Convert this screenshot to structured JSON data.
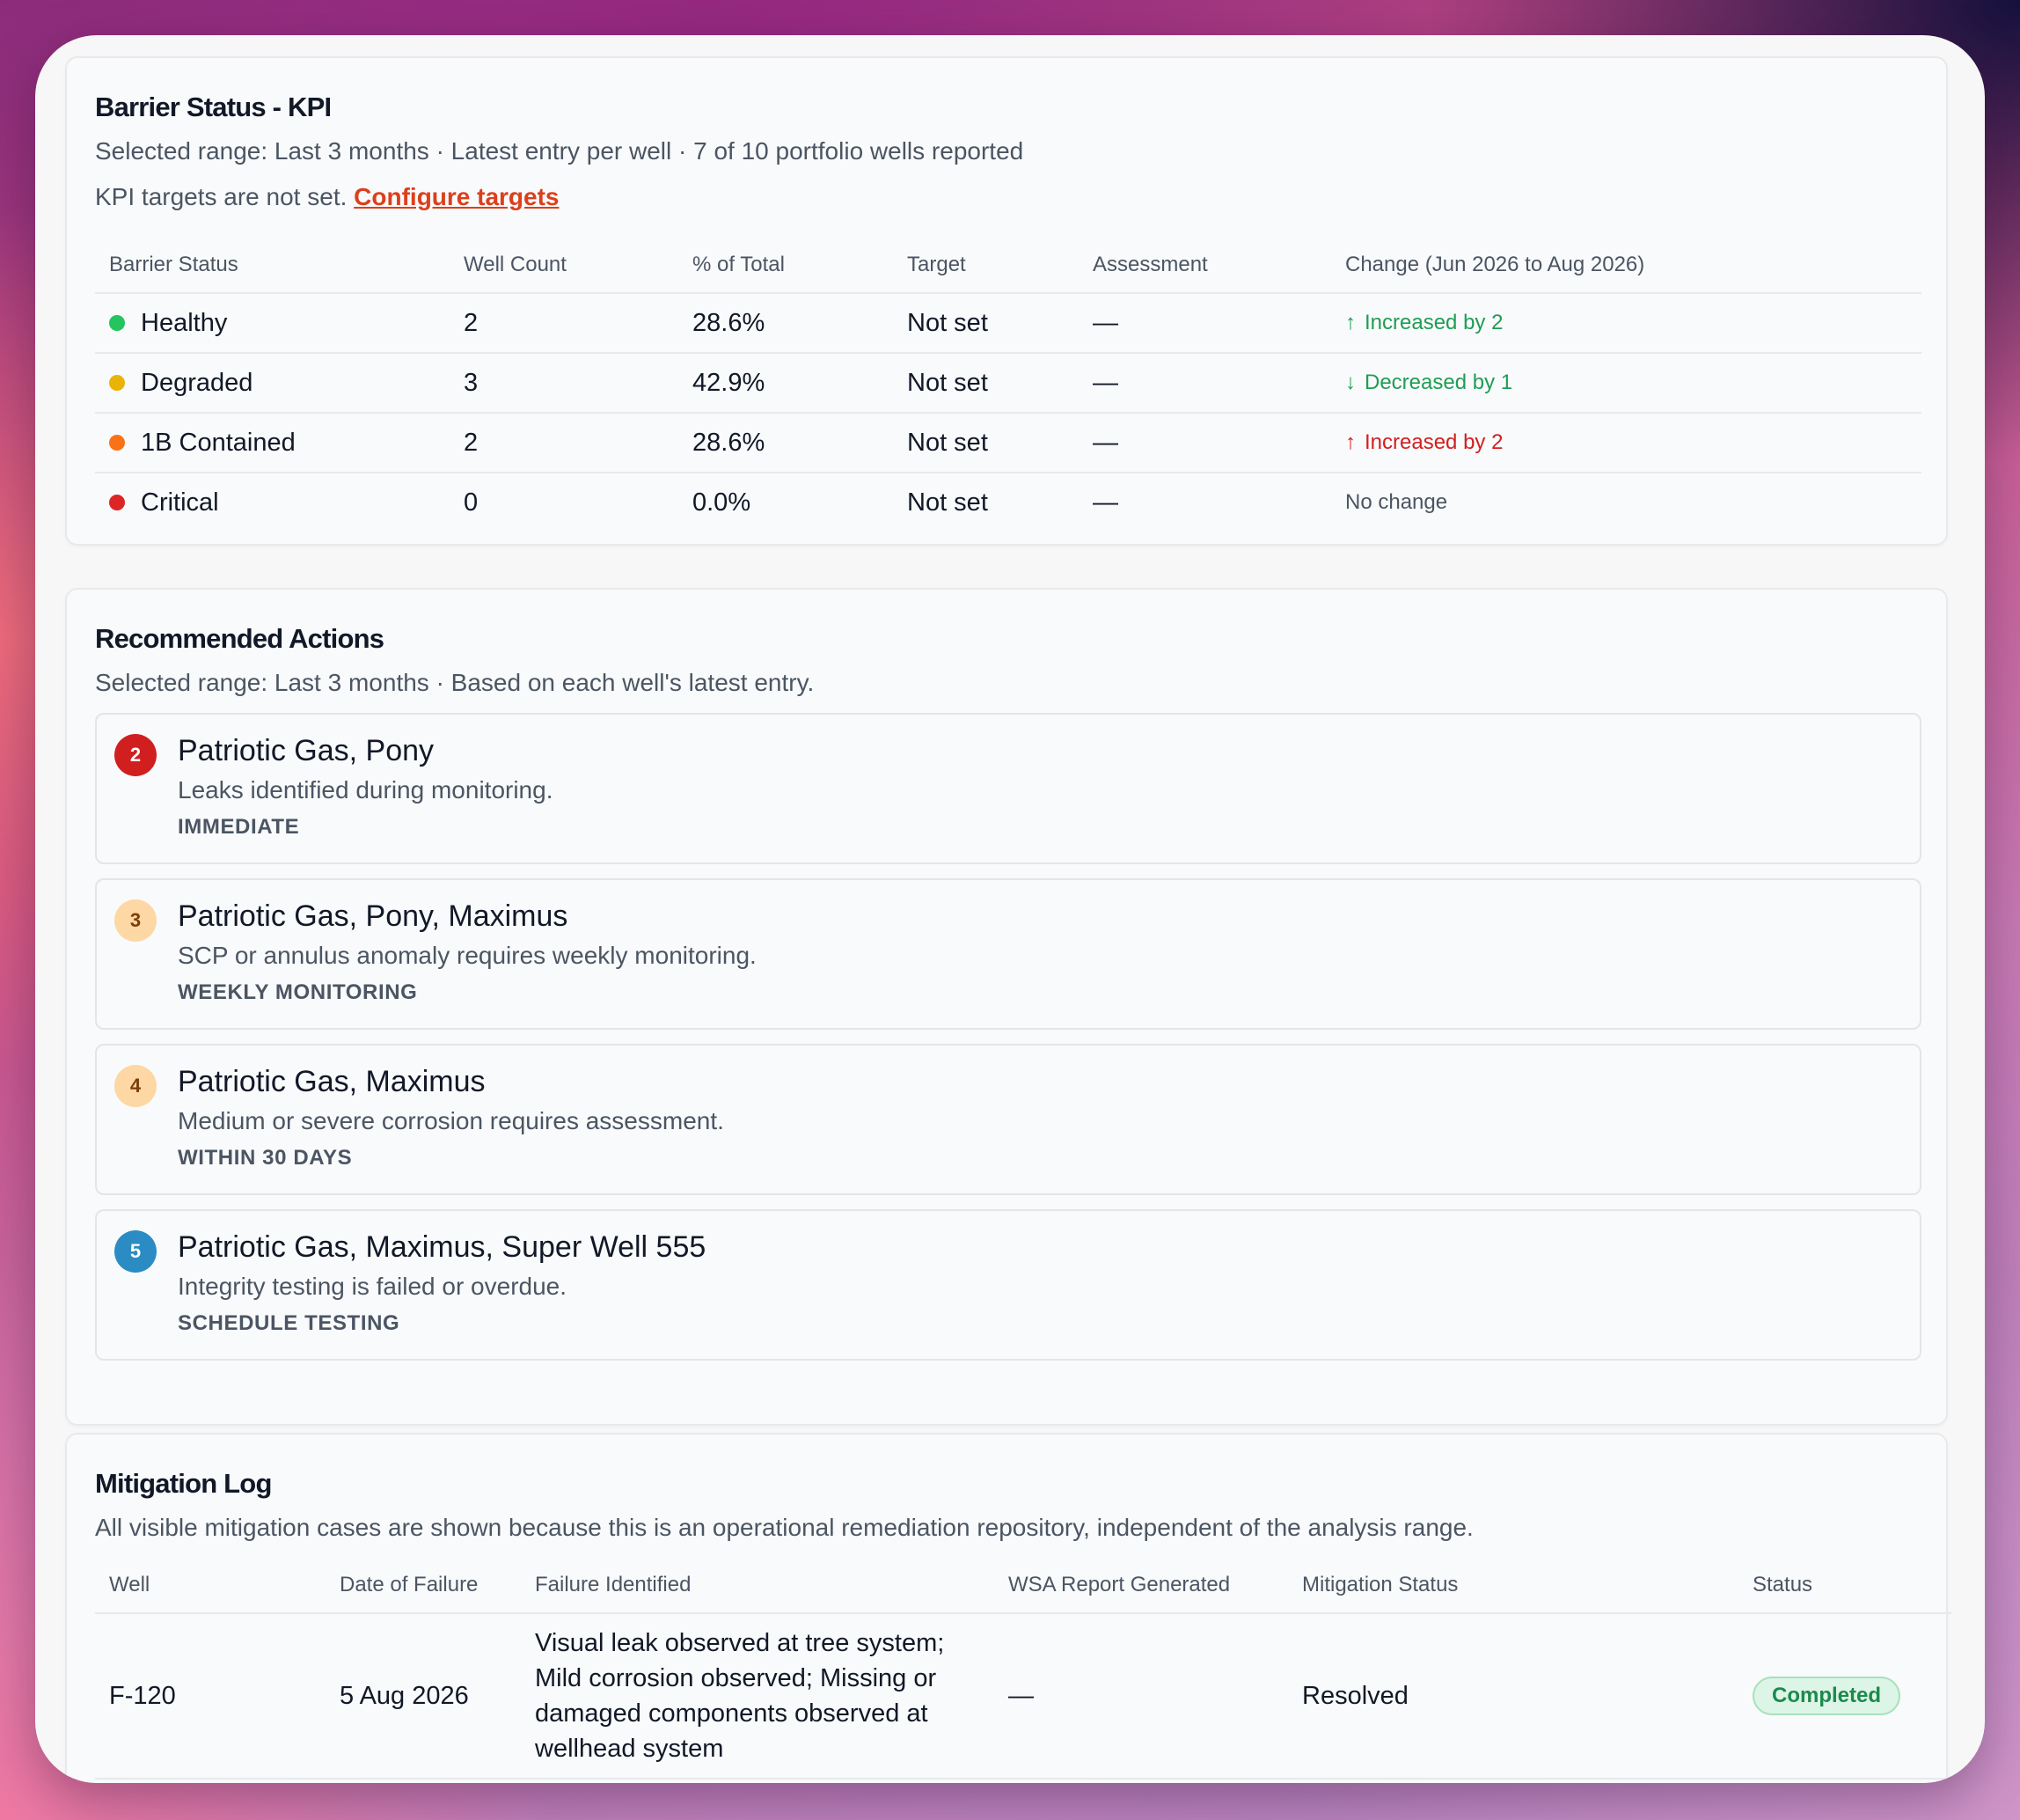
{
  "kpi": {
    "title": "Barrier Status - KPI",
    "subtitle": "Selected range: Last 3 months · Latest entry per well · 7 of 10 portfolio wells reported",
    "targets_note": "KPI targets are not set.",
    "configure_link": "Configure targets",
    "columns": [
      "Barrier Status",
      "Well Count",
      "% of Total",
      "Target",
      "Assessment",
      "Change (Jun 2026 to Aug 2026)"
    ],
    "rows": [
      {
        "status": "Healthy",
        "dot_color": "#22c55e",
        "count": "2",
        "pct": "28.6%",
        "target": "Not set",
        "assessment": "—",
        "change_icon": "arrow-up-icon",
        "change_glyph": "↑",
        "change": "Increased by 2",
        "change_color": "green"
      },
      {
        "status": "Degraded",
        "dot_color": "#eab308",
        "count": "3",
        "pct": "42.9%",
        "target": "Not set",
        "assessment": "—",
        "change_icon": "arrow-down-icon",
        "change_glyph": "↓",
        "change": "Decreased by 1",
        "change_color": "green"
      },
      {
        "status": "1B Contained",
        "dot_color": "#f97316",
        "count": "2",
        "pct": "28.6%",
        "target": "Not set",
        "assessment": "—",
        "change_icon": "arrow-up-icon",
        "change_glyph": "↑",
        "change": "Increased by 2",
        "change_color": "red"
      },
      {
        "status": "Critical",
        "dot_color": "#dc2626",
        "count": "0",
        "pct": "0.0%",
        "target": "Not set",
        "assessment": "—",
        "change_icon": "",
        "change_glyph": "",
        "change": "No change",
        "change_color": "gray"
      }
    ]
  },
  "actions": {
    "title": "Recommended Actions",
    "subtitle": "Selected range: Last 3 months · Based on each well's latest entry.",
    "items": [
      {
        "num": "2",
        "badge_bg": "#d11f1f",
        "badge_fg": "#ffffff",
        "title": "Patriotic Gas, Pony",
        "desc": "Leaks identified during monitoring.",
        "tag": "IMMEDIATE"
      },
      {
        "num": "3",
        "badge_bg": "#fdd7a4",
        "badge_fg": "#7a3e0a",
        "title": "Patriotic Gas, Pony, Maximus",
        "desc": "SCP or annulus anomaly requires weekly monitoring.",
        "tag": "WEEKLY MONITORING"
      },
      {
        "num": "4",
        "badge_bg": "#fdd7a4",
        "badge_fg": "#7a3e0a",
        "title": "Patriotic Gas, Maximus",
        "desc": "Medium or severe corrosion requires assessment.",
        "tag": "WITHIN 30 DAYS"
      },
      {
        "num": "5",
        "badge_bg": "#2b8cc4",
        "badge_fg": "#ffffff",
        "title": "Patriotic Gas, Maximus, Super Well 555",
        "desc": "Integrity testing is failed or overdue.",
        "tag": "SCHEDULE TESTING"
      }
    ]
  },
  "mitigation": {
    "title": "Mitigation Log",
    "subtitle": "All visible mitigation cases are shown because this is an operational remediation repository, independent of the analysis range.",
    "columns": [
      "Well",
      "Date of Failure",
      "Failure Identified",
      "WSA Report Generated",
      "Mitigation Status",
      "Status"
    ],
    "rows": [
      {
        "well": "F-120",
        "date": "5 Aug 2026",
        "failure": "Visual leak observed at tree system; Mild corrosion observed; Missing or damaged components observed at wellhead system",
        "wsa": "—",
        "mitigation_status": "Resolved",
        "status": "Completed"
      }
    ]
  }
}
